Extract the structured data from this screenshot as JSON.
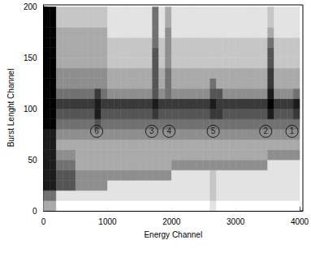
{
  "chart_data": {
    "type": "heatmap",
    "x_label": "Energy Channel",
    "y_label": "Burst Lenght Channel",
    "xlim": [
      0,
      4050
    ],
    "ylim": [
      0,
      202
    ],
    "xticks": [
      0,
      1000,
      2000,
      3000,
      4000
    ],
    "yticks": [
      0,
      50,
      100,
      150,
      200
    ],
    "x_bin_edges": [
      0,
      100,
      200,
      300,
      400,
      500,
      600,
      700,
      800,
      900,
      1000,
      1100,
      1200,
      1300,
      1400,
      1500,
      1600,
      1700,
      1800,
      1900,
      2000,
      2100,
      2200,
      2300,
      2400,
      2500,
      2600,
      2700,
      2800,
      2900,
      3000,
      3100,
      3200,
      3300,
      3400,
      3500,
      3600,
      3700,
      3800,
      3900,
      4000
    ],
    "y_bin_edges": [
      0,
      10,
      20,
      30,
      40,
      50,
      60,
      70,
      80,
      90,
      100,
      110,
      120,
      130,
      140,
      150,
      160,
      170,
      180,
      190,
      200
    ],
    "counts": [
      [
        3,
        3,
        0,
        0,
        0,
        0,
        0,
        0,
        0,
        0,
        0,
        0,
        0,
        0,
        0,
        0,
        0,
        0,
        0,
        0,
        0,
        0,
        0,
        0,
        0,
        0,
        1,
        0,
        0,
        0,
        0,
        0,
        0,
        0,
        0,
        0,
        0,
        0,
        0,
        0
      ],
      [
        5,
        5,
        1,
        1,
        1,
        1,
        1,
        1,
        1,
        1,
        1,
        1,
        1,
        1,
        1,
        1,
        1,
        1,
        1,
        1,
        1,
        1,
        1,
        1,
        1,
        1,
        2,
        1,
        1,
        1,
        1,
        1,
        1,
        1,
        1,
        1,
        1,
        1,
        1,
        1
      ],
      [
        8,
        8,
        6,
        6,
        6,
        4,
        4,
        4,
        4,
        4,
        1,
        1,
        1,
        1,
        1,
        1,
        1,
        1,
        1,
        1,
        1,
        1,
        1,
        1,
        1,
        1,
        2,
        1,
        1,
        1,
        1,
        1,
        1,
        1,
        1,
        1,
        1,
        1,
        1,
        1
      ],
      [
        8,
        8,
        6,
        6,
        6,
        4,
        4,
        4,
        4,
        4,
        4,
        4,
        4,
        4,
        4,
        4,
        4,
        4,
        4,
        4,
        1,
        1,
        1,
        1,
        1,
        1,
        2,
        1,
        1,
        1,
        1,
        1,
        1,
        1,
        1,
        1,
        1,
        1,
        1,
        1
      ],
      [
        8,
        8,
        5,
        5,
        5,
        3,
        3,
        3,
        3,
        3,
        3,
        3,
        3,
        3,
        3,
        3,
        3,
        3,
        3,
        3,
        4,
        4,
        4,
        4,
        4,
        4,
        4,
        4,
        4,
        4,
        4,
        4,
        4,
        4,
        4,
        1,
        1,
        1,
        1,
        1
      ],
      [
        8,
        8,
        4,
        4,
        4,
        3,
        3,
        3,
        3,
        3,
        3,
        3,
        3,
        3,
        3,
        3,
        3,
        3,
        3,
        3,
        3,
        3,
        3,
        3,
        3,
        3,
        3,
        3,
        3,
        3,
        3,
        3,
        3,
        3,
        3,
        4,
        4,
        4,
        4,
        4
      ],
      [
        8,
        8,
        3,
        3,
        3,
        3,
        3,
        3,
        3,
        3,
        3,
        3,
        3,
        3,
        3,
        3,
        3,
        3,
        3,
        3,
        3,
        3,
        3,
        3,
        3,
        3,
        3,
        3,
        3,
        3,
        3,
        3,
        3,
        3,
        3,
        3,
        3,
        3,
        3,
        3
      ],
      [
        8,
        8,
        4,
        4,
        4,
        4,
        4,
        4,
        4,
        4,
        4,
        4,
        4,
        4,
        4,
        4,
        4,
        4,
        4,
        4,
        4,
        4,
        4,
        4,
        4,
        4,
        4,
        4,
        4,
        4,
        4,
        4,
        4,
        4,
        4,
        4,
        4,
        4,
        4,
        4
      ],
      [
        9,
        9,
        5,
        5,
        5,
        5,
        5,
        5,
        6,
        5,
        5,
        5,
        5,
        5,
        5,
        5,
        5,
        5,
        5,
        5,
        5,
        5,
        5,
        5,
        5,
        5,
        5,
        5,
        5,
        5,
        5,
        5,
        5,
        5,
        5,
        5,
        5,
        5,
        5,
        5
      ],
      [
        9,
        9,
        6,
        6,
        6,
        6,
        6,
        6,
        8,
        6,
        6,
        6,
        6,
        6,
        6,
        6,
        6,
        7,
        6,
        6,
        6,
        6,
        6,
        6,
        6,
        6,
        7,
        7,
        6,
        6,
        6,
        6,
        6,
        6,
        6,
        8,
        6,
        6,
        6,
        7
      ],
      [
        9,
        9,
        7,
        7,
        7,
        7,
        7,
        7,
        8,
        7,
        7,
        7,
        7,
        7,
        7,
        7,
        7,
        8,
        7,
        7,
        7,
        7,
        7,
        7,
        7,
        7,
        8,
        7,
        7,
        7,
        7,
        7,
        7,
        7,
        7,
        9,
        7,
        7,
        7,
        8
      ],
      [
        9,
        9,
        5,
        5,
        5,
        5,
        5,
        5,
        7,
        5,
        4,
        4,
        4,
        4,
        4,
        4,
        4,
        6,
        4,
        5,
        4,
        4,
        4,
        4,
        4,
        4,
        6,
        6,
        4,
        4,
        4,
        4,
        4,
        4,
        4,
        8,
        4,
        4,
        4,
        5
      ],
      [
        9,
        9,
        4,
        4,
        4,
        4,
        4,
        4,
        4,
        4,
        3,
        3,
        3,
        3,
        3,
        3,
        3,
        6,
        3,
        5,
        3,
        3,
        3,
        3,
        3,
        3,
        5,
        3,
        3,
        3,
        3,
        3,
        3,
        3,
        3,
        7,
        3,
        3,
        3,
        3
      ],
      [
        9,
        9,
        4,
        4,
        4,
        4,
        4,
        4,
        4,
        4,
        3,
        3,
        3,
        3,
        3,
        3,
        3,
        6,
        3,
        5,
        3,
        3,
        3,
        3,
        3,
        3,
        3,
        3,
        3,
        3,
        3,
        3,
        3,
        3,
        3,
        7,
        3,
        3,
        3,
        3
      ],
      [
        9,
        9,
        3,
        3,
        3,
        3,
        3,
        3,
        3,
        3,
        2,
        2,
        2,
        2,
        2,
        2,
        2,
        6,
        2,
        4,
        2,
        2,
        2,
        2,
        2,
        2,
        2,
        2,
        2,
        2,
        2,
        2,
        2,
        2,
        2,
        6,
        2,
        2,
        2,
        2
      ],
      [
        9,
        9,
        3,
        3,
        3,
        3,
        3,
        3,
        3,
        3,
        2,
        2,
        2,
        2,
        2,
        2,
        2,
        6,
        2,
        4,
        2,
        2,
        2,
        2,
        2,
        2,
        2,
        2,
        2,
        2,
        2,
        2,
        2,
        2,
        2,
        6,
        2,
        2,
        2,
        2
      ],
      [
        9,
        9,
        3,
        3,
        3,
        3,
        3,
        3,
        3,
        3,
        2,
        2,
        2,
        2,
        2,
        2,
        2,
        5,
        2,
        4,
        2,
        2,
        2,
        2,
        2,
        2,
        2,
        2,
        2,
        2,
        2,
        2,
        2,
        2,
        2,
        5,
        2,
        2,
        2,
        2
      ],
      [
        9,
        9,
        3,
        3,
        3,
        3,
        3,
        3,
        3,
        3,
        1,
        1,
        1,
        1,
        1,
        1,
        1,
        5,
        1,
        4,
        1,
        1,
        1,
        1,
        1,
        1,
        1,
        1,
        1,
        1,
        1,
        1,
        1,
        1,
        1,
        3,
        1,
        1,
        1,
        1
      ],
      [
        9,
        9,
        2,
        2,
        2,
        2,
        2,
        2,
        2,
        2,
        1,
        1,
        1,
        1,
        1,
        1,
        1,
        5,
        1,
        3,
        1,
        1,
        1,
        1,
        1,
        1,
        1,
        1,
        1,
        1,
        1,
        1,
        1,
        1,
        1,
        2,
        1,
        1,
        1,
        1
      ],
      [
        9,
        9,
        2,
        2,
        2,
        2,
        2,
        2,
        2,
        2,
        1,
        1,
        1,
        1,
        1,
        1,
        1,
        5,
        1,
        3,
        1,
        1,
        1,
        1,
        1,
        1,
        1,
        1,
        1,
        1,
        1,
        1,
        1,
        1,
        1,
        2,
        1,
        1,
        1,
        1
      ]
    ],
    "color_range": [
      0,
      9
    ],
    "annotations": [
      {
        "text": "6",
        "x": 830,
        "y": 78
      },
      {
        "text": "3",
        "x": 1690,
        "y": 78
      },
      {
        "text": "4",
        "x": 1960,
        "y": 78
      },
      {
        "text": "5",
        "x": 2650,
        "y": 78
      },
      {
        "text": "2",
        "x": 3470,
        "y": 78
      },
      {
        "text": "1",
        "x": 3880,
        "y": 78
      }
    ]
  }
}
